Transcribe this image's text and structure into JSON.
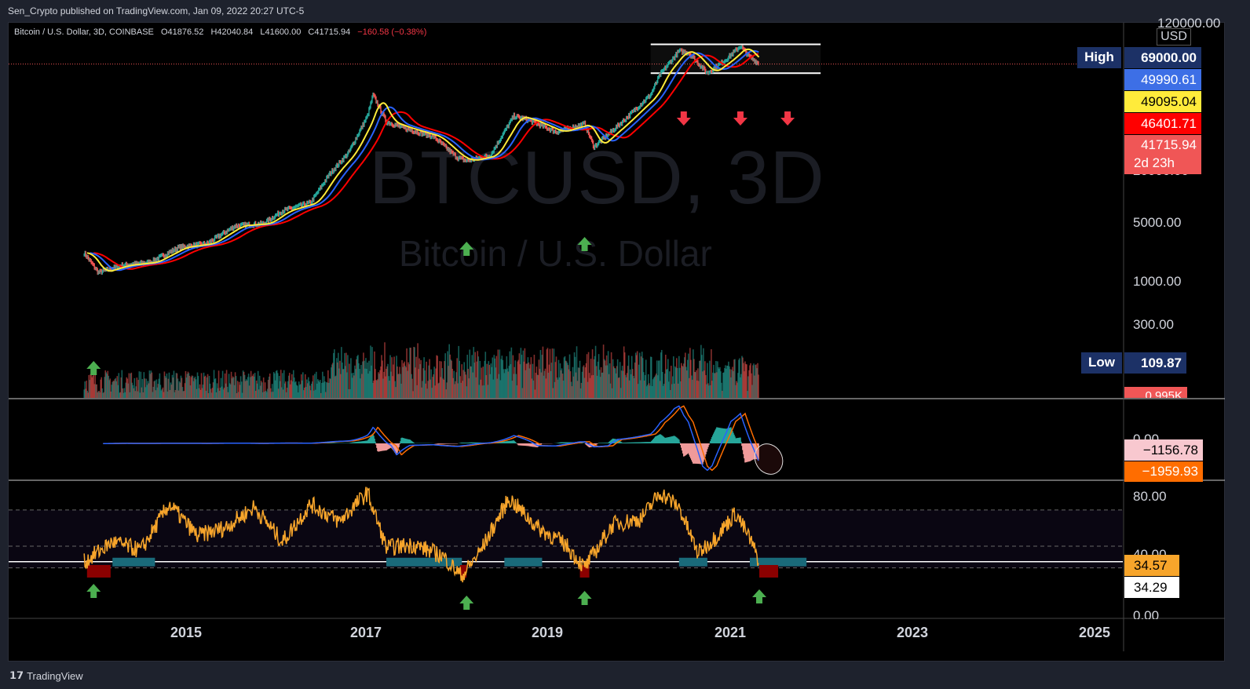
{
  "header": {
    "published": "Sen_Crypto published on TradingView.com, Jan 09, 2022 20:27 UTC-5"
  },
  "legend": {
    "symbol": "Bitcoin / U.S. Dollar, 3D, COINBASE",
    "open": "O41876.52",
    "high": "H42040.84",
    "low": "L41600.00",
    "close": "C41715.94",
    "change": "−160.58 (−0.38%)"
  },
  "watermark": {
    "ticker": "BTCUSD, 3D",
    "name": "Bitcoin / U.S. Dollar"
  },
  "price_axis": {
    "currency": "USD",
    "top_label": "120000.00",
    "labels": [
      "5000.00",
      "1000.00",
      "300.00"
    ],
    "partial_label": "20000.00",
    "volume_label": "0.995K"
  },
  "price_tags": {
    "high_label": "High",
    "high_value": "69000.00",
    "low_label": "Low",
    "low_value": "109.87",
    "ma1": "49990.61",
    "ma2": "49095.04",
    "ma3": "46401.71",
    "last_price": "41715.94",
    "countdown": "2d 23h"
  },
  "macd_axis": {
    "zero_label": "0.00",
    "macd_value": "−1156.78",
    "signal_value": "−1959.93"
  },
  "rsi_axis": {
    "top_label": "80.00",
    "mid_label": "40.00",
    "bottom_label": "0.00",
    "rsi_value": "34.57",
    "rsi_ma_value": "34.29"
  },
  "time_axis": [
    "2015",
    "2017",
    "2019",
    "2021",
    "2023",
    "2025"
  ],
  "footer": {
    "brand": "TradingView"
  },
  "colors": {
    "background": "#000000",
    "up": "#26a69a",
    "down": "#ef5350",
    "ma_blue": "#2962ff",
    "ma_yellow": "#ffeb3b",
    "ma_red": "#ff0000",
    "rsi": "#f7a52b",
    "macd_line": "#2962ff",
    "signal_line": "#ff6d00",
    "buy_arrow": "#4caf50",
    "sell_arrow": "#f23645",
    "oversold_zone": "#1a6a7a",
    "extreme_zone": "#8b0000"
  },
  "chart_data": {
    "type": "line",
    "title": "Bitcoin / U.S. Dollar, 3D, COINBASE",
    "x_axis": "time (years)",
    "price_scale": "log",
    "xlim": [
      2014.1,
      2025.9
    ],
    "ohlc_last": {
      "open": 41876.52,
      "high": 42040.84,
      "low": 41600.0,
      "close": 41715.94,
      "change": -160.58,
      "change_pct": -0.38
    },
    "high": 69000.0,
    "low": 109.87,
    "price_series": {
      "x": [
        2014.9,
        2015.05,
        2015.3,
        2015.6,
        2015.9,
        2016.2,
        2016.5,
        2016.8,
        2017.0,
        2017.3,
        2017.5,
        2017.7,
        2017.9,
        2017.96,
        2018.1,
        2018.3,
        2018.6,
        2018.85,
        2018.95,
        2019.2,
        2019.45,
        2019.6,
        2019.9,
        2020.2,
        2020.3,
        2020.6,
        2020.9,
        2021.0,
        2021.2,
        2021.3,
        2021.5,
        2021.7,
        2021.85,
        2021.95,
        2022.05
      ],
      "values": [
        330,
        200,
        240,
        260,
        380,
        420,
        660,
        700,
        970,
        1200,
        2500,
        4300,
        11000,
        19000,
        9500,
        8000,
        6500,
        3800,
        3500,
        4000,
        11000,
        10000,
        7300,
        9000,
        5000,
        9500,
        19000,
        32000,
        58000,
        56000,
        33000,
        47000,
        66000,
        50000,
        41715.94
      ]
    },
    "ma_values": {
      "blue": 49990.61,
      "yellow": 49095.04,
      "red": 46401.71
    },
    "resistance_range": [
      33000,
      69000
    ],
    "macd": {
      "macd": -1156.78,
      "signal": -1959.93
    },
    "rsi": {
      "x": [
        2014.9,
        2015.2,
        2015.5,
        2015.8,
        2016.1,
        2016.4,
        2016.7,
        2017.0,
        2017.3,
        2017.6,
        2017.9,
        2018.1,
        2018.4,
        2018.7,
        2018.9,
        2019.1,
        2019.4,
        2019.7,
        2020.0,
        2020.2,
        2020.5,
        2020.8,
        2021.0,
        2021.2,
        2021.4,
        2021.6,
        2021.8,
        2021.95,
        2022.05
      ],
      "values": [
        34,
        48,
        42,
        74,
        52,
        58,
        72,
        48,
        74,
        62,
        82,
        44,
        46,
        38,
        24,
        42,
        78,
        58,
        46,
        30,
        60,
        64,
        82,
        72,
        40,
        52,
        68,
        50,
        34.57
      ],
      "rsi_value": 34.57,
      "rsi_ma": 34.29,
      "levels": [
        70,
        45,
        30
      ],
      "ylim": [
        0,
        90
      ]
    },
    "buy_signals": [
      2015.0,
      2018.95,
      2020.2,
      2022.05
    ],
    "sell_signals": [
      2021.25,
      2021.85,
      2022.35
    ]
  }
}
